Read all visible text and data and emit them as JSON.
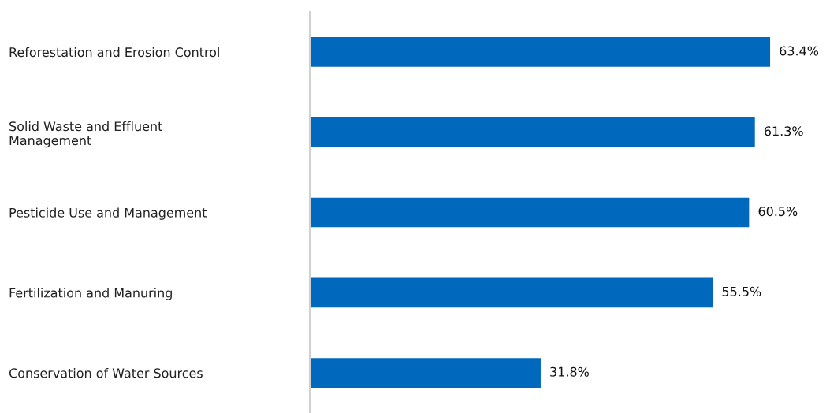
{
  "chart_data": {
    "type": "bar",
    "orientation": "horizontal",
    "categories": [
      "Reforestation and Erosion Control",
      "Solid Waste and Effluent\nManagement",
      "Pesticide Use and Management",
      "Fertilization and Manuring",
      "Conservation of Water Sources"
    ],
    "values": [
      63.4,
      61.3,
      60.5,
      55.5,
      31.8
    ],
    "value_labels": [
      "63.4%",
      "61.3%",
      "60.5%",
      "55.5%",
      "31.8%"
    ],
    "color": "#0068bd",
    "grid": false,
    "legend": false,
    "tick_labels": "y"
  }
}
